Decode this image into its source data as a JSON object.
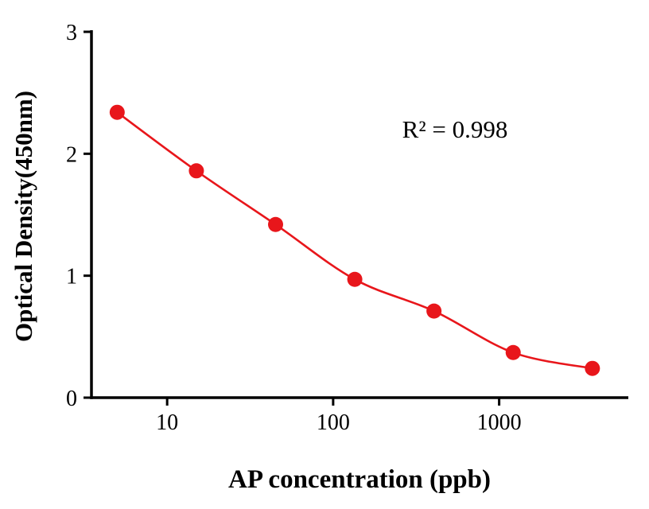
{
  "chart_data": {
    "type": "scatter",
    "title": "",
    "xlabel": "AP concentration (ppb)",
    "ylabel": "Optical Density(450nm)",
    "annotation": "R² = 0.998",
    "x_scale": "log",
    "x": [
      5,
      15,
      45,
      135,
      405,
      1215,
      3645
    ],
    "y": [
      2.34,
      1.86,
      1.42,
      0.97,
      0.71,
      0.37,
      0.24
    ],
    "xlim": [
      3.5,
      6000
    ],
    "ylim": [
      0,
      3
    ],
    "xticks": [
      10,
      100,
      1000
    ],
    "yticks": [
      0,
      1,
      2,
      3
    ],
    "grid": false,
    "legend": "none",
    "series_color": "#e8161b",
    "axis_color": "#000000",
    "marker_size": 9.5,
    "line_width": 2.6
  }
}
